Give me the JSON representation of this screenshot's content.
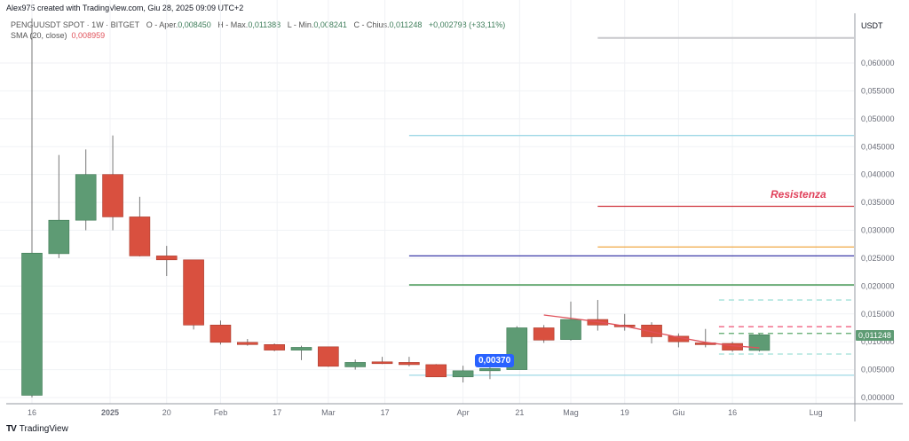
{
  "header": {
    "credit": "Alex975 created with TradingView.com, Giu 28, 2025 09:09 UTC+2",
    "symbol": "PENGUUSDT SPOT · 1W · BITGET",
    "open_label": "O - Aper.",
    "open": "0,008450",
    "high_label": "H - Max.",
    "high": "0,011388",
    "low_label": "L - Min.",
    "low": "0,008241",
    "close_label": "C - Chius.",
    "close": "0,011248",
    "change": "+0,002798 (+33,11%)",
    "sma_label": "SMA (20, close)",
    "sma_value": "0,008959"
  },
  "axis": {
    "currency": "USDT",
    "last_price": "0,011248"
  },
  "annotations": {
    "resistance": "Resistenza",
    "bubble": "0,00370"
  },
  "footer": {
    "brand": "TradingView"
  },
  "colors": {
    "up": "#5e9b74",
    "down": "#d9503f",
    "sma": "#e0525b"
  },
  "chart_data": {
    "type": "candlestick",
    "title": "PENGUUSDT SPOT · 1W · BITGET",
    "ylabel": "USDT",
    "ylim": [
      0,
      0.065
    ],
    "y_ticks": [
      "0,000000",
      "0,005000",
      "0,010000",
      "0,015000",
      "0,020000",
      "0,025000",
      "0,030000",
      "0,035000",
      "0,040000",
      "0,045000",
      "0,050000",
      "0,055000",
      "0,060000"
    ],
    "y_tick_values": [
      0,
      0.005,
      0.01,
      0.015,
      0.02,
      0.025,
      0.03,
      0.035,
      0.04,
      0.045,
      0.05,
      0.055,
      0.06
    ],
    "x_ticks": [
      {
        "label": "16",
        "i": 0
      },
      {
        "label": "2025",
        "i": 2.9,
        "bold": true
      },
      {
        "label": "20",
        "i": 5
      },
      {
        "label": "Feb",
        "i": 7
      },
      {
        "label": "17",
        "i": 9.1
      },
      {
        "label": "Mar",
        "i": 11
      },
      {
        "label": "17",
        "i": 13.1
      },
      {
        "label": "Apr",
        "i": 16
      },
      {
        "label": "21",
        "i": 18.1
      },
      {
        "label": "Mag",
        "i": 20
      },
      {
        "label": "19",
        "i": 22
      },
      {
        "label": "Giu",
        "i": 24
      },
      {
        "label": "16",
        "i": 26
      },
      {
        "label": "Lug",
        "i": 29.1
      }
    ],
    "candles": [
      [
        0.0004,
        0.068,
        0.0,
        0.0259
      ],
      [
        0.0258,
        0.0435,
        0.025,
        0.0318
      ],
      [
        0.0318,
        0.0445,
        0.03,
        0.04
      ],
      [
        0.04,
        0.047,
        0.03,
        0.0324
      ],
      [
        0.0324,
        0.036,
        0.0253,
        0.0254
      ],
      [
        0.0254,
        0.0272,
        0.0218,
        0.0247
      ],
      [
        0.0247,
        0.0247,
        0.0122,
        0.013
      ],
      [
        0.013,
        0.0138,
        0.0095,
        0.0099
      ],
      [
        0.0099,
        0.0105,
        0.0093,
        0.0095
      ],
      [
        0.0095,
        0.0097,
        0.0083,
        0.0085
      ],
      [
        0.0085,
        0.0093,
        0.0067,
        0.009
      ],
      [
        0.0091,
        0.0091,
        0.0055,
        0.0056
      ],
      [
        0.0055,
        0.0068,
        0.005,
        0.0063
      ],
      [
        0.0064,
        0.0073,
        0.006,
        0.0063
      ],
      [
        0.0063,
        0.0073,
        0.0056,
        0.0059
      ],
      [
        0.0059,
        0.006,
        0.0037,
        0.0037
      ],
      [
        0.0037,
        0.0057,
        0.0027,
        0.0048
      ],
      [
        0.0048,
        0.0058,
        0.0033,
        0.0052
      ],
      [
        0.005,
        0.0128,
        0.005,
        0.0125
      ],
      [
        0.0125,
        0.013,
        0.0098,
        0.0103
      ],
      [
        0.0104,
        0.0172,
        0.0102,
        0.014
      ],
      [
        0.014,
        0.0175,
        0.012,
        0.013
      ],
      [
        0.013,
        0.015,
        0.012,
        0.0128
      ],
      [
        0.013,
        0.0135,
        0.0097,
        0.0109
      ],
      [
        0.011,
        0.0115,
        0.009,
        0.01
      ],
      [
        0.0098,
        0.0123,
        0.009,
        0.0096
      ],
      [
        0.0097,
        0.01,
        0.0082,
        0.0085
      ],
      [
        0.00845,
        0.011388,
        0.008241,
        0.011248
      ]
    ],
    "candle_format": "open, high, low, close",
    "sma": {
      "name": "SMA (20, close)",
      "start_index": 19,
      "values": [
        0.0148,
        0.0142,
        0.0136,
        0.0128,
        0.0118,
        0.0108,
        0.0099,
        0.0093,
        0.0089
      ]
    },
    "levels": [
      {
        "value": 0.0645,
        "color": "#c8c8cc",
        "from": 21,
        "style": "solid"
      },
      {
        "value": 0.047,
        "color": "#9fd8e6",
        "from": 14,
        "style": "solid"
      },
      {
        "value": 0.0343,
        "color": "#d0343f",
        "from": 21,
        "style": "solid"
      },
      {
        "value": 0.027,
        "color": "#f0a742",
        "from": 21,
        "style": "solid"
      },
      {
        "value": 0.0254,
        "color": "#3c3aa8",
        "from": 14,
        "style": "solid"
      },
      {
        "value": 0.0202,
        "color": "#2e8b3e",
        "from": 14,
        "style": "solid"
      },
      {
        "value": 0.0175,
        "color": "#9fe0d8",
        "from": 25.5,
        "style": "dashed"
      },
      {
        "value": 0.0127,
        "color": "#f06080",
        "from": 25.5,
        "style": "dashed"
      },
      {
        "value": 0.0115,
        "color": "#5aa86a",
        "from": 25.5,
        "style": "dashed"
      },
      {
        "value": 0.0078,
        "color": "#9fe0d8",
        "from": 25.5,
        "style": "dashed"
      },
      {
        "value": 0.004,
        "color": "#9fd8e6",
        "from": 14,
        "style": "solid"
      }
    ]
  }
}
